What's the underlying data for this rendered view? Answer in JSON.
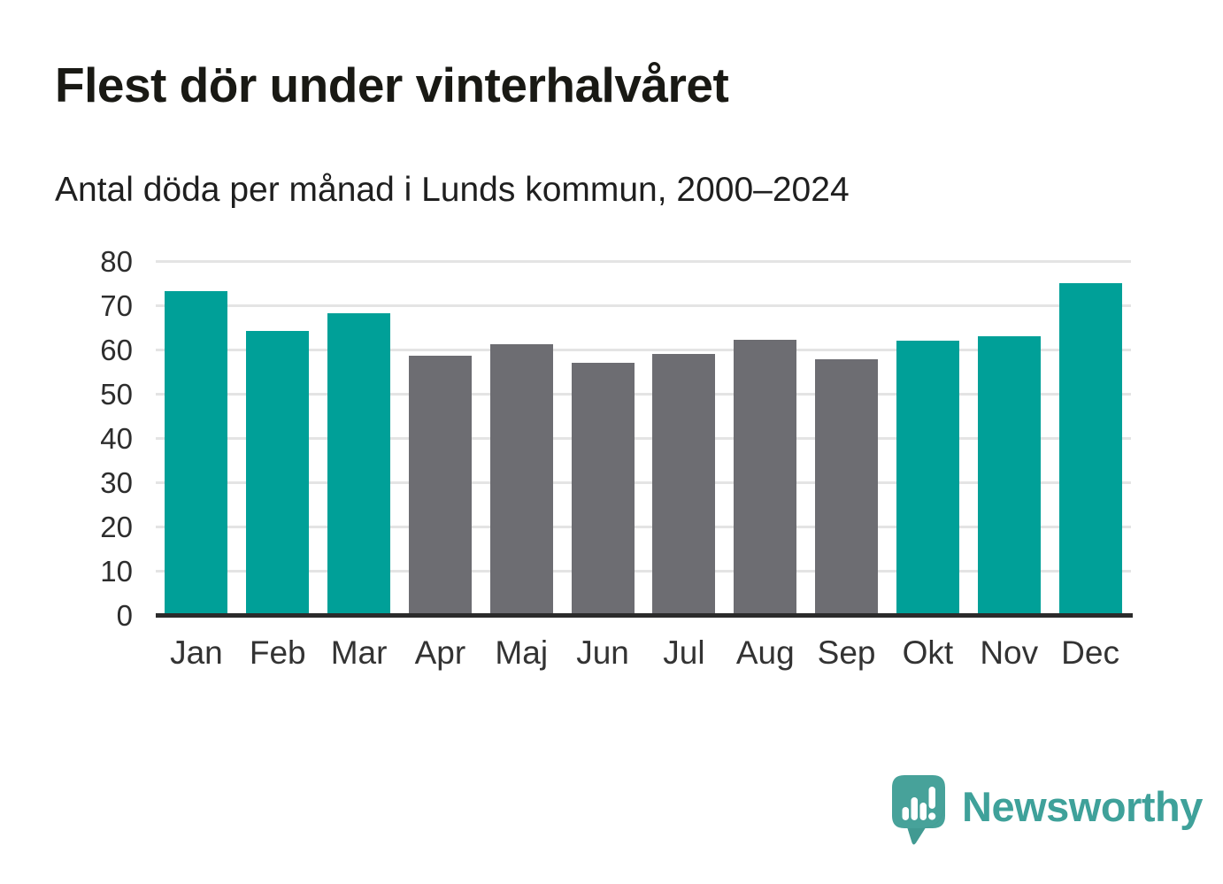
{
  "header": {
    "title": "Flest dör under vinterhalvåret",
    "subtitle": "Antal döda per månad i Lunds kommun, 2000–2024"
  },
  "chart_data": {
    "type": "bar",
    "title": "Flest dör under vinterhalvåret",
    "subtitle": "Antal döda per månad i Lunds kommun, 2000–2024",
    "categories": [
      "Jan",
      "Feb",
      "Mar",
      "Apr",
      "Maj",
      "Jun",
      "Jul",
      "Aug",
      "Sep",
      "Okt",
      "Nov",
      "Dec"
    ],
    "values": [
      73.2,
      64.2,
      68.3,
      58.7,
      61.3,
      57.1,
      59.1,
      62.3,
      57.8,
      62.0,
      63.0,
      75.0
    ],
    "ylim": [
      0,
      80
    ],
    "yticks": [
      0,
      10,
      20,
      30,
      40,
      50,
      60,
      70,
      80
    ],
    "grid": "horizontal",
    "legend": false,
    "xlabel": "",
    "ylabel": "",
    "colors": {
      "highlight": "#00a098",
      "muted": "#6d6d72",
      "gridline": "#e4e4e4",
      "axis": "#2b2b2b"
    },
    "bar_color_keys": [
      "highlight",
      "highlight",
      "highlight",
      "muted",
      "muted",
      "muted",
      "muted",
      "muted",
      "muted",
      "highlight",
      "highlight",
      "highlight"
    ]
  },
  "footer": {
    "brand": "Newsworthy",
    "brand_color": "#3fa19a",
    "logo_icon": "newsworthy-speech-bubble-bar-chart-icon"
  }
}
